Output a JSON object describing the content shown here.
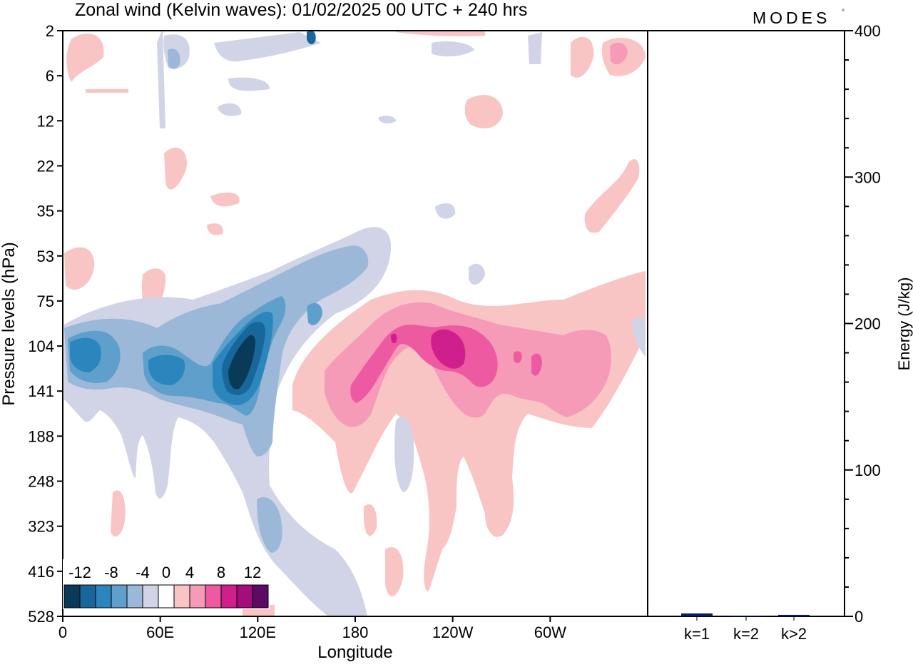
{
  "title": "Zonal wind (Kelvin waves):  01/02/2025  00 UTC  + 240 hrs",
  "brand": "MODES",
  "brand_mark": "°",
  "chart_data": [
    {
      "type": "heatmap",
      "title": "Zonal wind (Kelvin waves):  01/02/2025  00 UTC  + 240 hrs",
      "xlabel": "Longitude",
      "ylabel": "Pressure levels (hPa)",
      "x_ticks": [
        "0",
        "60E",
        "120E",
        "180",
        "120W",
        "60W"
      ],
      "x_tick_degrees": [
        0,
        60,
        120,
        180,
        240,
        300
      ],
      "xlim": [
        0,
        360
      ],
      "y_ticks": [
        "2",
        "6",
        "12",
        "22",
        "35",
        "53",
        "75",
        "104",
        "141",
        "188",
        "248",
        "323",
        "416",
        "528"
      ],
      "y_order": "top-to-bottom",
      "colorbar": {
        "labels": [
          "-12",
          "-8",
          "-4",
          "0",
          "4",
          "8",
          "12"
        ],
        "levels": [
          -14,
          -12,
          -10,
          -8,
          -6,
          -4,
          -2,
          2,
          4,
          6,
          8,
          10,
          12,
          14
        ],
        "colors": [
          "#0a3a5a",
          "#17679a",
          "#2b86bd",
          "#5e9fcb",
          "#9bb8d8",
          "#d1d4e6",
          "#ffffff",
          "#f8c5c4",
          "#f59bb8",
          "#ee5aa2",
          "#cf1f8c",
          "#a40d7c",
          "#5c0a63"
        ],
        "placement": "bottom-left"
      },
      "features": [
        {
          "sign": "negative",
          "lon_range": [
            0,
            130
          ],
          "pressure_range": [
            75,
            416
          ],
          "peak": -13,
          "peak_lon": 115,
          "peak_pressure": 130
        },
        {
          "sign": "positive",
          "lon_range": [
            140,
            340
          ],
          "pressure_range": [
            60,
            528
          ],
          "peak": 11,
          "peak_lon": 225,
          "peak_pressure": 110
        }
      ]
    },
    {
      "type": "bar",
      "categories": [
        "k=1",
        "k=2",
        "k>2"
      ],
      "values": [
        2,
        0.5,
        1
      ],
      "ylabel": "Energy (J/kg)",
      "ylim": [
        0,
        400
      ],
      "y_ticks": [
        "0",
        "100",
        "200",
        "300",
        "400"
      ],
      "bar_color": "#0a1a6a"
    }
  ]
}
